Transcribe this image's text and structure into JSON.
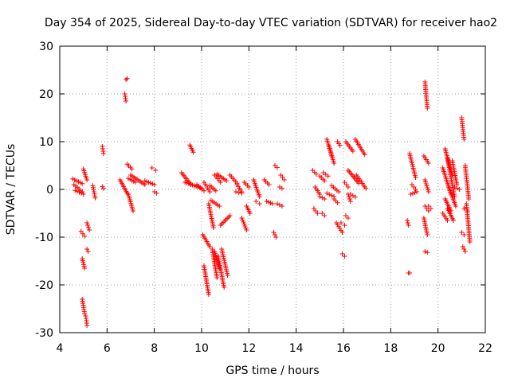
{
  "chart_data": {
    "type": "scatter",
    "title": "Day 354 of 2025, Sidereal Day-to-day VTEC variation (SDTVAR) for receiver hao2",
    "xlabel": "GPS time / hours",
    "ylabel": "SDTVAR / TECUs",
    "xlim": [
      4,
      22
    ],
    "ylim": [
      -30,
      30
    ],
    "xticks": [
      4,
      6,
      8,
      10,
      12,
      14,
      16,
      18,
      20,
      22
    ],
    "yticks": [
      -30,
      -20,
      -10,
      0,
      10,
      20,
      30
    ],
    "xtick_labels": [
      "4",
      "6",
      "8",
      "10",
      "12",
      "14",
      "16",
      "18",
      "20",
      "22"
    ],
    "ytick_labels": [
      "-30",
      "-20",
      "-10",
      "0",
      "10",
      "20",
      "30"
    ],
    "grid": true,
    "marker": "+",
    "color": "#ff0000",
    "segments": [
      [
        4.55,
        4.95,
        2.2,
        1.2
      ],
      [
        4.6,
        4.95,
        1.0,
        -0.5
      ],
      [
        4.65,
        5.0,
        -0.2,
        -1.0
      ],
      [
        5.0,
        5.15,
        4.3,
        2.0
      ],
      [
        4.9,
        5.05,
        -8.8,
        -9.8
      ],
      [
        5.15,
        5.25,
        -7.0,
        -8.5
      ],
      [
        4.95,
        5.05,
        -14.5,
        -16.5
      ],
      [
        5.15,
        5.2,
        -12.5,
        -13.0
      ],
      [
        4.95,
        5.05,
        -23.0,
        -26.0
      ],
      [
        5.1,
        5.15,
        -26.5,
        -28.5
      ],
      [
        5.4,
        5.5,
        0.8,
        -1.8
      ],
      [
        5.8,
        5.85,
        9.0,
        7.5
      ],
      [
        5.8,
        5.85,
        0.6,
        0.2
      ],
      [
        6.8,
        6.85,
        23.0,
        23.2
      ],
      [
        6.75,
        6.8,
        20.0,
        18.5
      ],
      [
        6.55,
        6.85,
        2.0,
        -0.8
      ],
      [
        6.85,
        7.05,
        5.3,
        4.3
      ],
      [
        6.9,
        7.1,
        -1.0,
        -4.5
      ],
      [
        7.0,
        7.6,
        3.0,
        1.0
      ],
      [
        7.6,
        8.0,
        1.8,
        1.0
      ],
      [
        7.9,
        8.05,
        4.5,
        4.0
      ],
      [
        8.0,
        8.1,
        -0.5,
        -0.8
      ],
      [
        6.9,
        7.2,
        2.3,
        1.5
      ],
      [
        9.15,
        9.55,
        3.5,
        1.0
      ],
      [
        9.5,
        9.65,
        9.3,
        7.8
      ],
      [
        9.3,
        10.0,
        1.5,
        0.2
      ],
      [
        9.8,
        10.1,
        1.0,
        -0.3
      ],
      [
        10.1,
        10.35,
        1.5,
        -0.5
      ],
      [
        10.35,
        10.6,
        0.8,
        -0.3
      ],
      [
        10.55,
        10.8,
        3.0,
        1.5
      ],
      [
        10.05,
        10.35,
        -9.5,
        -12.0
      ],
      [
        10.1,
        10.3,
        -16.0,
        -22.0
      ],
      [
        10.3,
        10.5,
        -3.0,
        -8.0
      ],
      [
        10.4,
        10.75,
        -2.3,
        -3.5
      ],
      [
        10.45,
        10.65,
        -12.5,
        -18.5
      ],
      [
        10.55,
        10.75,
        -13.0,
        -16.5
      ],
      [
        10.7,
        10.95,
        -14.0,
        -20.5
      ],
      [
        10.85,
        11.1,
        -12.5,
        -18.0
      ],
      [
        10.8,
        11.2,
        -7.5,
        -5.5
      ],
      [
        11.2,
        11.5,
        3.0,
        1.3
      ],
      [
        10.65,
        11.05,
        3.2,
        1.8
      ],
      [
        11.5,
        11.7,
        1.0,
        -0.5
      ],
      [
        11.45,
        11.7,
        -0.5,
        -0.8
      ],
      [
        11.8,
        12.0,
        1.5,
        0.5
      ],
      [
        11.7,
        11.9,
        -6.0,
        -8.5
      ],
      [
        11.9,
        12.05,
        -3.5,
        -5.0
      ],
      [
        12.2,
        12.45,
        2.0,
        -1.5
      ],
      [
        12.3,
        12.45,
        -2.5,
        -3.0
      ],
      [
        12.65,
        12.85,
        2.0,
        1.0
      ],
      [
        12.75,
        13.0,
        -2.5,
        -3.0
      ],
      [
        13.05,
        13.15,
        -9.0,
        -10.0
      ],
      [
        13.1,
        13.2,
        5.0,
        4.6
      ],
      [
        13.35,
        13.5,
        3.0,
        2.0
      ],
      [
        13.2,
        13.4,
        -3.0,
        -3.5
      ],
      [
        13.3,
        13.4,
        0.5,
        0.2
      ],
      [
        14.7,
        14.85,
        4.0,
        3.2
      ],
      [
        14.75,
        14.9,
        -4.0,
        -5.0
      ],
      [
        15.0,
        15.2,
        2.8,
        1.8
      ],
      [
        15.1,
        15.2,
        -5.0,
        -5.5
      ],
      [
        15.3,
        15.5,
        10.5,
        7.0
      ],
      [
        15.4,
        15.6,
        9.0,
        5.5
      ],
      [
        15.5,
        15.8,
        0.8,
        -0.5
      ],
      [
        15.6,
        15.75,
        -2.0,
        -2.8
      ],
      [
        15.7,
        15.95,
        -7.0,
        -9.0
      ],
      [
        15.75,
        15.85,
        10.0,
        9.2
      ],
      [
        15.95,
        16.05,
        -13.5,
        -14.0
      ],
      [
        15.9,
        16.05,
        -7.0,
        -7.5
      ],
      [
        16.1,
        16.2,
        -5.5,
        -6.0
      ],
      [
        16.05,
        16.2,
        1.5,
        0.5
      ],
      [
        16.1,
        16.4,
        10.0,
        8.0
      ],
      [
        16.5,
        16.9,
        10.5,
        7.3
      ],
      [
        16.2,
        16.65,
        4.0,
        1.3
      ],
      [
        16.55,
        16.95,
        3.0,
        0.2
      ],
      [
        16.3,
        16.5,
        -1.0,
        -1.6
      ],
      [
        15.3,
        15.6,
        -0.8,
        -1.5
      ],
      [
        15.15,
        15.35,
        3.5,
        2.8
      ],
      [
        16.2,
        16.3,
        -1.0,
        -2.5
      ],
      [
        14.8,
        15.0,
        0.5,
        -1.0
      ],
      [
        15.0,
        15.2,
        -1.5,
        -2.0
      ],
      [
        18.7,
        18.75,
        -6.5,
        -7.5
      ],
      [
        18.75,
        18.8,
        -17.5,
        -17.5
      ],
      [
        18.8,
        19.05,
        7.5,
        2.5
      ],
      [
        18.9,
        19.05,
        1.0,
        0.0
      ],
      [
        18.85,
        19.1,
        -1.0,
        -0.5
      ],
      [
        19.45,
        19.55,
        22.5,
        17.0
      ],
      [
        19.45,
        19.6,
        -3.5,
        -4.5
      ],
      [
        19.4,
        19.55,
        -6.0,
        -9.5
      ],
      [
        19.45,
        19.55,
        -13.0,
        -13.2
      ],
      [
        19.4,
        19.6,
        7.0,
        5.5
      ],
      [
        19.45,
        19.6,
        2.0,
        -0.5
      ],
      [
        19.6,
        19.7,
        -3.5,
        -4.0
      ],
      [
        20.2,
        20.55,
        4.5,
        -1.0
      ],
      [
        20.3,
        20.6,
        8.5,
        3.0
      ],
      [
        20.4,
        20.7,
        6.5,
        -1.5
      ],
      [
        20.3,
        20.55,
        -2.0,
        -4.5
      ],
      [
        20.4,
        20.65,
        -4.0,
        -6.5
      ],
      [
        20.45,
        20.75,
        0.5,
        -3.5
      ],
      [
        20.6,
        20.8,
        6.0,
        1.0
      ],
      [
        20.2,
        20.4,
        -5.0,
        -6.5
      ],
      [
        20.7,
        20.9,
        0.5,
        0.0
      ],
      [
        21.0,
        21.1,
        15.0,
        10.5
      ],
      [
        21.0,
        21.1,
        -9.0,
        -9.5
      ],
      [
        21.05,
        21.15,
        -12.0,
        -13.0
      ],
      [
        21.15,
        21.3,
        5.0,
        -2.0
      ],
      [
        21.2,
        21.35,
        -3.0,
        -11.0
      ],
      [
        21.1,
        21.25,
        -4.0,
        -4.5
      ]
    ]
  }
}
